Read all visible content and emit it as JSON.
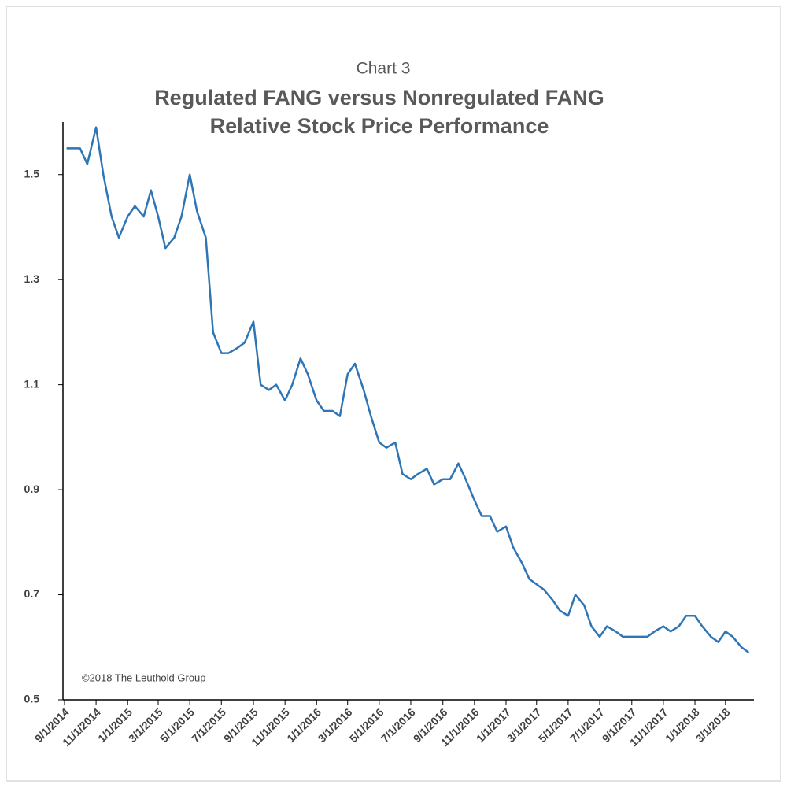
{
  "chart_data": {
    "type": "line",
    "title": "Chart 3",
    "subtitle": [
      "Regulated FANG versus Nonregulated FANG",
      "Relative Stock Price Performance"
    ],
    "annotation": "©2018 The Leuthold Group",
    "x": [
      "9/5/2014",
      "9/15/2014",
      "10/1/2014",
      "10/15/2014",
      "11/1/2014",
      "11/15/2014",
      "12/1/2014",
      "12/15/2014",
      "1/1/2015",
      "1/15/2015",
      "2/1/2015",
      "2/15/2015",
      "3/1/2015",
      "3/15/2015",
      "4/1/2015",
      "4/15/2015",
      "5/1/2015",
      "5/15/2015",
      "6/1/2015",
      "6/15/2015",
      "7/1/2015",
      "7/15/2015",
      "8/1/2015",
      "8/15/2015",
      "9/1/2015",
      "9/15/2015",
      "10/1/2015",
      "10/15/2015",
      "11/1/2015",
      "11/15/2015",
      "12/1/2015",
      "12/15/2015",
      "1/1/2016",
      "1/15/2016",
      "2/1/2016",
      "2/15/2016",
      "3/1/2016",
      "3/15/2016",
      "4/1/2016",
      "4/15/2016",
      "5/1/2016",
      "5/15/2016",
      "6/1/2016",
      "6/15/2016",
      "7/1/2016",
      "7/15/2016",
      "8/1/2016",
      "8/15/2016",
      "9/1/2016",
      "9/15/2016",
      "10/1/2016",
      "10/15/2016",
      "11/1/2016",
      "11/15/2016",
      "12/1/2016",
      "12/15/2016",
      "1/1/2017",
      "1/15/2017",
      "2/1/2017",
      "2/15/2017",
      "3/1/2017",
      "3/15/2017",
      "4/1/2017",
      "4/15/2017",
      "5/1/2017",
      "5/15/2017",
      "6/1/2017",
      "6/15/2017",
      "7/1/2017",
      "7/15/2017",
      "8/1/2017",
      "8/15/2017",
      "9/1/2017",
      "9/15/2017",
      "10/1/2017",
      "10/15/2017",
      "11/1/2017",
      "11/15/2017",
      "12/1/2017",
      "12/15/2017",
      "1/1/2018",
      "1/15/2018",
      "2/1/2018",
      "2/15/2018",
      "3/1/2018",
      "3/15/2018",
      "4/1/2018",
      "4/15/2018"
    ],
    "series": [
      {
        "name": "Regulated vs Nonregulated FANG",
        "color": "#2e75b6",
        "values": [
          1.55,
          1.55,
          1.55,
          1.52,
          1.59,
          1.5,
          1.42,
          1.38,
          1.42,
          1.44,
          1.42,
          1.47,
          1.42,
          1.36,
          1.38,
          1.42,
          1.5,
          1.43,
          1.38,
          1.2,
          1.16,
          1.16,
          1.17,
          1.18,
          1.22,
          1.1,
          1.09,
          1.1,
          1.07,
          1.1,
          1.15,
          1.12,
          1.07,
          1.05,
          1.05,
          1.04,
          1.12,
          1.14,
          1.09,
          1.04,
          0.99,
          0.98,
          0.99,
          0.93,
          0.92,
          0.93,
          0.94,
          0.91,
          0.92,
          0.92,
          0.95,
          0.92,
          0.88,
          0.85,
          0.85,
          0.82,
          0.83,
          0.79,
          0.76,
          0.73,
          0.72,
          0.71,
          0.69,
          0.67,
          0.66,
          0.7,
          0.68,
          0.64,
          0.62,
          0.64,
          0.63,
          0.62,
          0.62,
          0.62,
          0.62,
          0.63,
          0.64,
          0.63,
          0.64,
          0.66,
          0.66,
          0.64,
          0.62,
          0.61,
          0.63,
          0.62,
          0.6,
          0.59
        ]
      }
    ],
    "xlim": [
      "8/29/2014",
      "4/25/2018"
    ],
    "xticks": [
      "9/1/2014",
      "11/1/2014",
      "1/1/2015",
      "3/1/2015",
      "5/1/2015",
      "7/1/2015",
      "9/1/2015",
      "11/1/2015",
      "1/1/2016",
      "3/1/2016",
      "5/1/2016",
      "7/1/2016",
      "9/1/2016",
      "11/1/2016",
      "1/1/2017",
      "3/1/2017",
      "5/1/2017",
      "7/1/2017",
      "9/1/2017",
      "11/1/2017",
      "1/1/2018",
      "3/1/2018"
    ],
    "ylim": [
      0.5,
      1.6
    ],
    "yticks": [
      0.5,
      0.7,
      0.9,
      1.1,
      1.3,
      1.5
    ],
    "grid": false
  }
}
